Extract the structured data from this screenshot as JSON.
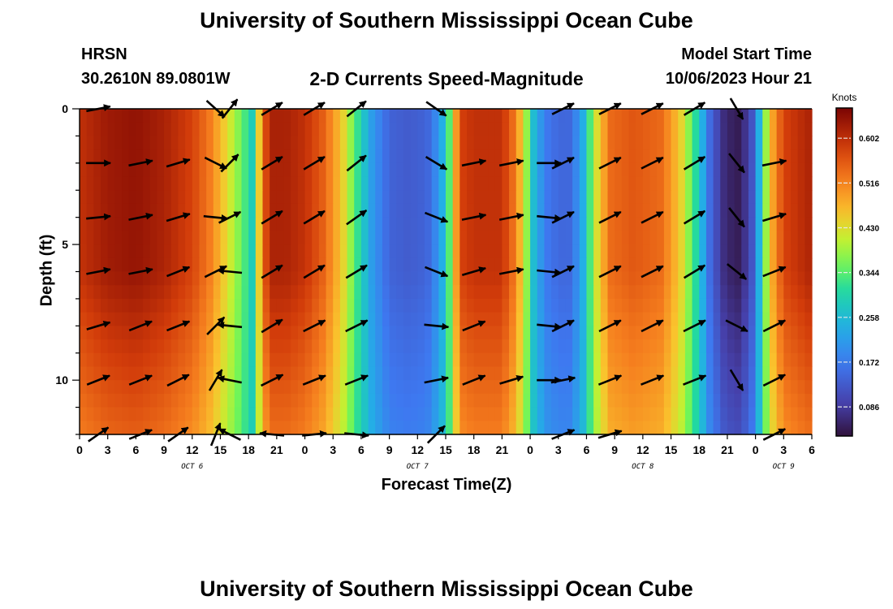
{
  "header": {
    "title": "University of Southern Mississippi Ocean Cube",
    "station": "HRSN",
    "coords": "30.2610N  89.0801W",
    "subtitle": "2-D Currents Speed-Magnitude",
    "model_start_label": "Model Start Time",
    "model_start_time": "10/06/2023 Hour 21"
  },
  "footer": {
    "title": "University of Southern Mississippi Ocean Cube"
  },
  "chart_data": {
    "type": "heatmap",
    "title": "2-D Currents Speed-Magnitude",
    "xlabel": "Forecast Time(Z)",
    "ylabel": "Depth (ft)",
    "colorbar_label": "Knots",
    "colorbar_ticks": [
      0.086,
      0.172,
      0.258,
      0.344,
      0.43,
      0.516,
      0.602
    ],
    "colorbar_range": [
      0.03,
      0.66
    ],
    "x_range_hours": [
      0,
      78
    ],
    "x_tick_labels": [
      "0",
      "3",
      "6",
      "9",
      "12",
      "15",
      "18",
      "21",
      "0",
      "3",
      "6",
      "9",
      "12",
      "15",
      "18",
      "21",
      "0",
      "3",
      "6",
      "9",
      "12",
      "15",
      "18",
      "21",
      "0",
      "3",
      "6"
    ],
    "day_labels": [
      {
        "label": "OCT 6",
        "hour": 12
      },
      {
        "label": "OCT 7",
        "hour": 36
      },
      {
        "label": "OCT 8",
        "hour": 60
      },
      {
        "label": "OCT 9",
        "hour": 75
      }
    ],
    "y_range_ft": [
      0,
      12
    ],
    "y_ticks": [
      0,
      5,
      10
    ],
    "depth_rows_ft": [
      0,
      2,
      4,
      6,
      8,
      10,
      12
    ],
    "surface_speed_knots": [
      [
        0,
        0.6
      ],
      [
        3,
        0.63
      ],
      [
        6,
        0.64
      ],
      [
        9,
        0.62
      ],
      [
        12,
        0.58
      ],
      [
        14,
        0.52
      ],
      [
        16,
        0.42
      ],
      [
        17.5,
        0.34
      ],
      [
        18.5,
        0.28
      ],
      [
        19.5,
        0.55
      ],
      [
        20.5,
        0.62
      ],
      [
        22,
        0.62
      ],
      [
        24,
        0.6
      ],
      [
        26,
        0.55
      ],
      [
        28,
        0.45
      ],
      [
        29.5,
        0.33
      ],
      [
        31,
        0.22
      ],
      [
        33,
        0.14
      ],
      [
        35,
        0.13
      ],
      [
        37,
        0.14
      ],
      [
        38.5,
        0.22
      ],
      [
        39.5,
        0.36
      ],
      [
        40.5,
        0.58
      ],
      [
        42,
        0.6
      ],
      [
        45,
        0.6
      ],
      [
        46.5,
        0.52
      ],
      [
        47.5,
        0.4
      ],
      [
        48.5,
        0.24
      ],
      [
        50,
        0.16
      ],
      [
        52,
        0.14
      ],
      [
        53.5,
        0.22
      ],
      [
        55,
        0.42
      ],
      [
        56.5,
        0.54
      ],
      [
        59,
        0.56
      ],
      [
        62,
        0.54
      ],
      [
        64,
        0.45
      ],
      [
        66,
        0.28
      ],
      [
        67,
        0.16
      ],
      [
        68.5,
        0.07
      ],
      [
        70,
        0.04
      ],
      [
        71.5,
        0.1
      ],
      [
        72.5,
        0.26
      ],
      [
        73.5,
        0.46
      ],
      [
        75,
        0.58
      ],
      [
        78,
        0.62
      ]
    ],
    "depth_attenuation": [
      [
        0,
        1.0
      ],
      [
        6,
        0.99
      ],
      [
        8,
        0.9
      ],
      [
        10,
        0.82
      ],
      [
        12,
        0.74
      ]
    ],
    "vectors": [
      {
        "hour": 2,
        "depth": 0,
        "u": 1,
        "v": 0.2
      },
      {
        "hour": 2,
        "depth": 2,
        "u": 1,
        "v": 0
      },
      {
        "hour": 2,
        "depth": 4,
        "u": 1,
        "v": 0.1
      },
      {
        "hour": 2,
        "depth": 6,
        "u": 1,
        "v": 0.2
      },
      {
        "hour": 2,
        "depth": 8,
        "u": 1,
        "v": 0.3
      },
      {
        "hour": 2,
        "depth": 10,
        "u": 1,
        "v": 0.4
      },
      {
        "hour": 2,
        "depth": 12,
        "u": 1,
        "v": 0.7
      },
      {
        "hour": 6.5,
        "depth": 2,
        "u": 1,
        "v": 0.2
      },
      {
        "hour": 6.5,
        "depth": 4,
        "u": 1,
        "v": 0.2
      },
      {
        "hour": 6.5,
        "depth": 6,
        "u": 1,
        "v": 0.2
      },
      {
        "hour": 6.5,
        "depth": 8,
        "u": 1,
        "v": 0.4
      },
      {
        "hour": 6.5,
        "depth": 10,
        "u": 1,
        "v": 0.4
      },
      {
        "hour": 6.5,
        "depth": 12,
        "u": 1,
        "v": 0.4
      },
      {
        "hour": 10.5,
        "depth": 2,
        "u": 1,
        "v": 0.3
      },
      {
        "hour": 10.5,
        "depth": 4,
        "u": 1,
        "v": 0.3
      },
      {
        "hour": 10.5,
        "depth": 6,
        "u": 1,
        "v": 0.4
      },
      {
        "hour": 10.5,
        "depth": 8,
        "u": 1,
        "v": 0.4
      },
      {
        "hour": 10.5,
        "depth": 10,
        "u": 1,
        "v": 0.5
      },
      {
        "hour": 10.5,
        "depth": 12,
        "u": 1,
        "v": 0.7
      },
      {
        "hour": 14.5,
        "depth": 0,
        "u": 1,
        "v": -0.9
      },
      {
        "hour": 14.5,
        "depth": 2,
        "u": 1,
        "v": -0.5
      },
      {
        "hour": 14.5,
        "depth": 4,
        "u": 1,
        "v": -0.1
      },
      {
        "hour": 14.5,
        "depth": 6,
        "u": 1,
        "v": 0.5
      },
      {
        "hour": 14.5,
        "depth": 8,
        "u": 1,
        "v": 1
      },
      {
        "hour": 14.5,
        "depth": 10,
        "u": 0.6,
        "v": 1
      },
      {
        "hour": 14.5,
        "depth": 12,
        "u": 0.4,
        "v": 1
      },
      {
        "hour": 16,
        "depth": 0,
        "u": 0.8,
        "v": 1
      },
      {
        "hour": 16,
        "depth": 2,
        "u": 1,
        "v": 1
      },
      {
        "hour": 16,
        "depth": 4,
        "u": 1,
        "v": 0.5
      },
      {
        "hour": 16,
        "depth": 6,
        "u": -1,
        "v": 0.1
      },
      {
        "hour": 16,
        "depth": 8,
        "u": -1,
        "v": 0.1
      },
      {
        "hour": 16,
        "depth": 10,
        "u": -1,
        "v": 0.2
      },
      {
        "hour": 16,
        "depth": 12,
        "u": -1,
        "v": 0.5
      },
      {
        "hour": 20.5,
        "depth": 0,
        "u": 1,
        "v": 0.6
      },
      {
        "hour": 20.5,
        "depth": 2,
        "u": 1,
        "v": 0.6
      },
      {
        "hour": 20.5,
        "depth": 4,
        "u": 1,
        "v": 0.6
      },
      {
        "hour": 20.5,
        "depth": 6,
        "u": 1,
        "v": 0.6
      },
      {
        "hour": 20.5,
        "depth": 8,
        "u": 1,
        "v": 0.6
      },
      {
        "hour": 20.5,
        "depth": 10,
        "u": 1,
        "v": 0.5
      },
      {
        "hour": 20.5,
        "depth": 12,
        "u": -1,
        "v": 0.1
      },
      {
        "hour": 25,
        "depth": 0,
        "u": 1,
        "v": 0.6
      },
      {
        "hour": 25,
        "depth": 2,
        "u": 1,
        "v": 0.6
      },
      {
        "hour": 25,
        "depth": 4,
        "u": 1,
        "v": 0.6
      },
      {
        "hour": 25,
        "depth": 6,
        "u": 1,
        "v": 0.6
      },
      {
        "hour": 25,
        "depth": 8,
        "u": 1,
        "v": 0.5
      },
      {
        "hour": 25,
        "depth": 10,
        "u": 1,
        "v": 0.4
      },
      {
        "hour": 25,
        "depth": 12,
        "u": 1,
        "v": 0.1
      },
      {
        "hour": 29.5,
        "depth": 0,
        "u": 1,
        "v": 0.8
      },
      {
        "hour": 29.5,
        "depth": 2,
        "u": 1,
        "v": 0.8
      },
      {
        "hour": 29.5,
        "depth": 4,
        "u": 1,
        "v": 0.7
      },
      {
        "hour": 29.5,
        "depth": 6,
        "u": 1,
        "v": 0.6
      },
      {
        "hour": 29.5,
        "depth": 8,
        "u": 1,
        "v": 0.5
      },
      {
        "hour": 29.5,
        "depth": 10,
        "u": 1,
        "v": 0.4
      },
      {
        "hour": 29.5,
        "depth": 12,
        "u": 1,
        "v": -0.1
      },
      {
        "hour": 38,
        "depth": 0,
        "u": 1,
        "v": -0.7
      },
      {
        "hour": 38,
        "depth": 2,
        "u": 1,
        "v": -0.6
      },
      {
        "hour": 38,
        "depth": 4,
        "u": 1,
        "v": -0.4
      },
      {
        "hour": 38,
        "depth": 6,
        "u": 1,
        "v": -0.4
      },
      {
        "hour": 38,
        "depth": 8,
        "u": 1,
        "v": -0.1
      },
      {
        "hour": 38,
        "depth": 10,
        "u": 1,
        "v": 0.2
      },
      {
        "hour": 38,
        "depth": 12,
        "u": 1,
        "v": 1
      },
      {
        "hour": 42,
        "depth": 2,
        "u": 1,
        "v": 0.2
      },
      {
        "hour": 42,
        "depth": 4,
        "u": 1,
        "v": 0.2
      },
      {
        "hour": 42,
        "depth": 6,
        "u": 1,
        "v": 0.3
      },
      {
        "hour": 42,
        "depth": 8,
        "u": 1,
        "v": 0.4
      },
      {
        "hour": 42,
        "depth": 10,
        "u": 1,
        "v": 0.4
      },
      {
        "hour": 46,
        "depth": 2,
        "u": 1,
        "v": 0.2
      },
      {
        "hour": 46,
        "depth": 4,
        "u": 1,
        "v": 0.2
      },
      {
        "hour": 46,
        "depth": 6,
        "u": 1,
        "v": 0.2
      },
      {
        "hour": 46,
        "depth": 10,
        "u": 1,
        "v": 0.3
      },
      {
        "hour": 50,
        "depth": 2,
        "u": 1,
        "v": 0
      },
      {
        "hour": 50,
        "depth": 4,
        "u": 1,
        "v": -0.1
      },
      {
        "hour": 50,
        "depth": 6,
        "u": 1,
        "v": -0.1
      },
      {
        "hour": 50,
        "depth": 8,
        "u": 1,
        "v": -0.1
      },
      {
        "hour": 50,
        "depth": 10,
        "u": 1,
        "v": 0
      },
      {
        "hour": 51.5,
        "depth": 0,
        "u": 1,
        "v": 0.5
      },
      {
        "hour": 51.5,
        "depth": 2,
        "u": 1,
        "v": 0.5
      },
      {
        "hour": 51.5,
        "depth": 4,
        "u": 1,
        "v": 0.5
      },
      {
        "hour": 51.5,
        "depth": 6,
        "u": 1,
        "v": 0.5
      },
      {
        "hour": 51.5,
        "depth": 8,
        "u": 1,
        "v": 0.5
      },
      {
        "hour": 51.5,
        "depth": 10,
        "u": 1,
        "v": 0.2
      },
      {
        "hour": 51.5,
        "depth": 12,
        "u": 1,
        "v": 0.4
      },
      {
        "hour": 56.5,
        "depth": 0,
        "u": 1,
        "v": 0.5
      },
      {
        "hour": 56.5,
        "depth": 2,
        "u": 1,
        "v": 0.5
      },
      {
        "hour": 56.5,
        "depth": 4,
        "u": 1,
        "v": 0.5
      },
      {
        "hour": 56.5,
        "depth": 6,
        "u": 1,
        "v": 0.5
      },
      {
        "hour": 56.5,
        "depth": 8,
        "u": 1,
        "v": 0.5
      },
      {
        "hour": 56.5,
        "depth": 10,
        "u": 1,
        "v": 0.4
      },
      {
        "hour": 56.5,
        "depth": 12,
        "u": 1,
        "v": 0.3
      },
      {
        "hour": 61,
        "depth": 0,
        "u": 1,
        "v": 0.5
      },
      {
        "hour": 61,
        "depth": 2,
        "u": 1,
        "v": 0.5
      },
      {
        "hour": 61,
        "depth": 4,
        "u": 1,
        "v": 0.5
      },
      {
        "hour": 61,
        "depth": 6,
        "u": 1,
        "v": 0.5
      },
      {
        "hour": 61,
        "depth": 8,
        "u": 1,
        "v": 0.5
      },
      {
        "hour": 61,
        "depth": 10,
        "u": 1,
        "v": 0.4
      },
      {
        "hour": 65.5,
        "depth": 0,
        "u": 1,
        "v": 0.6
      },
      {
        "hour": 65.5,
        "depth": 2,
        "u": 1,
        "v": 0.6
      },
      {
        "hour": 65.5,
        "depth": 4,
        "u": 1,
        "v": 0.6
      },
      {
        "hour": 65.5,
        "depth": 6,
        "u": 1,
        "v": 0.6
      },
      {
        "hour": 65.5,
        "depth": 8,
        "u": 1,
        "v": 0.5
      },
      {
        "hour": 65.5,
        "depth": 10,
        "u": 1,
        "v": 0.4
      },
      {
        "hour": 70,
        "depth": 0,
        "u": 0.6,
        "v": -1
      },
      {
        "hour": 70,
        "depth": 2,
        "u": 0.8,
        "v": -1
      },
      {
        "hour": 70,
        "depth": 4,
        "u": 0.8,
        "v": -1
      },
      {
        "hour": 70,
        "depth": 6,
        "u": 1,
        "v": -0.8
      },
      {
        "hour": 70,
        "depth": 8,
        "u": 1,
        "v": -0.5
      },
      {
        "hour": 70,
        "depth": 10,
        "u": 0.6,
        "v": -1
      },
      {
        "hour": 74,
        "depth": 2,
        "u": 1,
        "v": 0.2
      },
      {
        "hour": 74,
        "depth": 4,
        "u": 1,
        "v": 0.3
      },
      {
        "hour": 74,
        "depth": 6,
        "u": 1,
        "v": 0.4
      },
      {
        "hour": 74,
        "depth": 8,
        "u": 1,
        "v": 0.5
      },
      {
        "hour": 74,
        "depth": 10,
        "u": 1,
        "v": 0.5
      },
      {
        "hour": 74,
        "depth": 12,
        "u": 1,
        "v": 0.5
      }
    ],
    "grid": false,
    "legend": "right"
  }
}
